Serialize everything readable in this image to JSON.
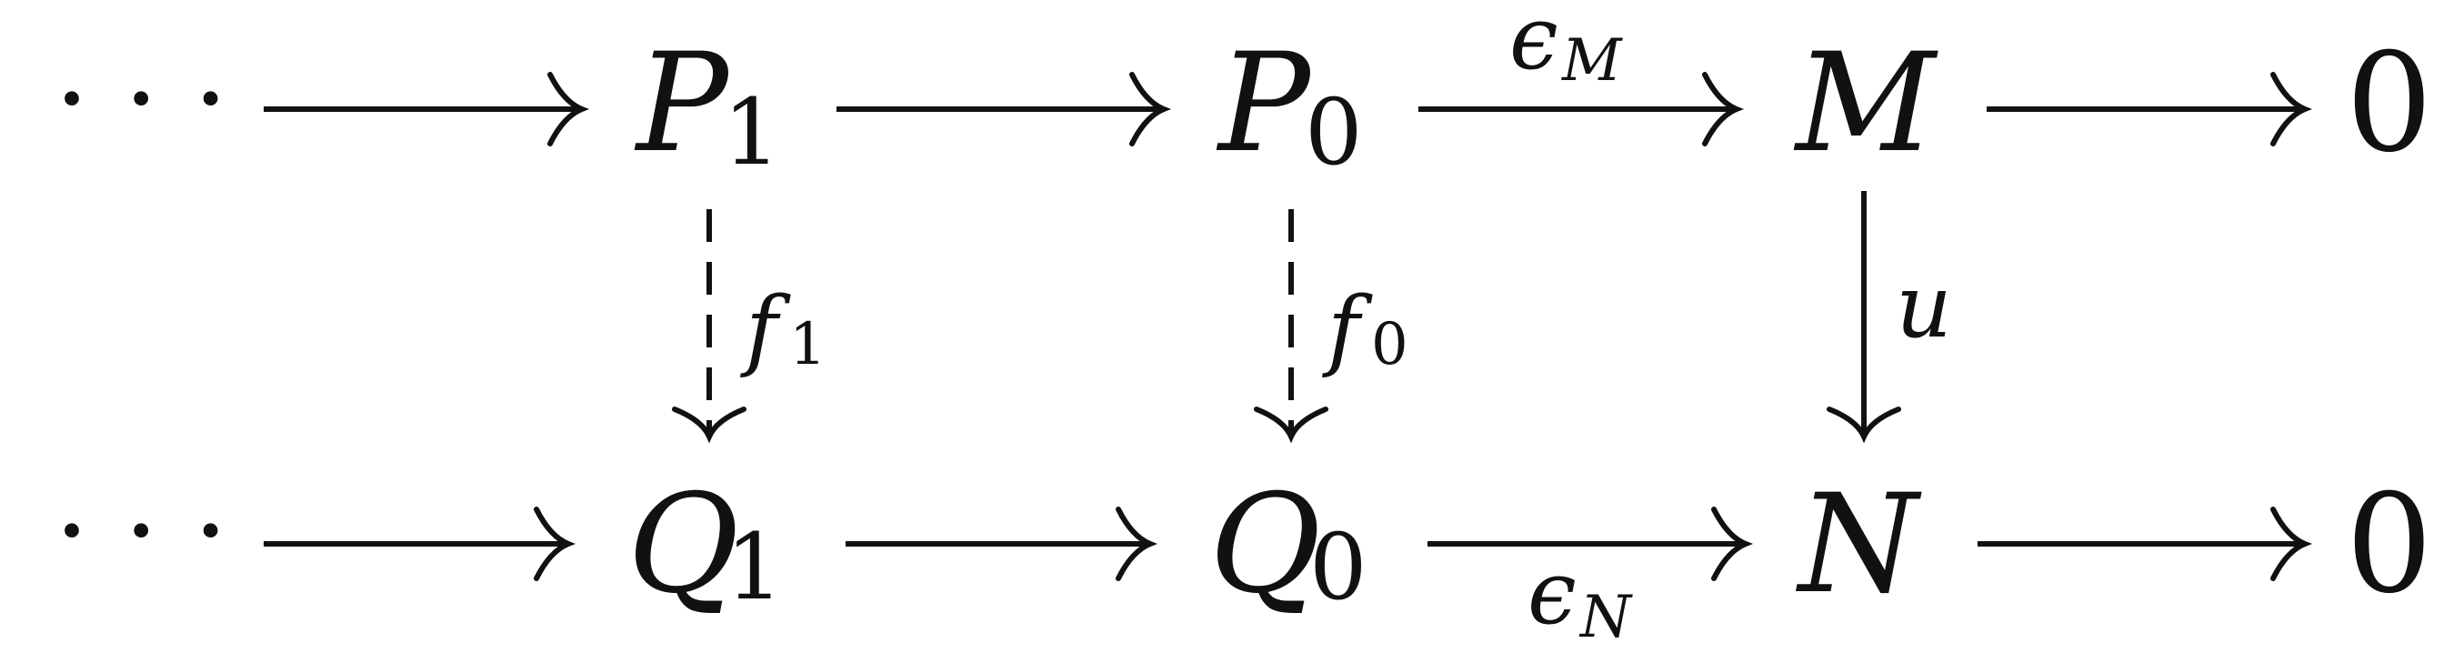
{
  "top_row": {
    "dots": "· · ·",
    "p1": {
      "main": "P",
      "sub": "1"
    },
    "p0": {
      "main": "P",
      "sub": "0"
    },
    "m": "M",
    "zero": "0"
  },
  "bottom_row": {
    "dots": "· · ·",
    "q1": {
      "main": "Q",
      "sub": "1"
    },
    "q0": {
      "main": "Q",
      "sub": "0"
    },
    "n": "N",
    "zero": "0"
  },
  "labels": {
    "eps_m": {
      "main": "ϵ",
      "sub": "M"
    },
    "eps_n": {
      "main": "ϵ",
      "sub": "N"
    },
    "f1": {
      "main": "f",
      "sub": "1"
    },
    "f0": {
      "main": "f",
      "sub": "0"
    },
    "u": "u"
  }
}
